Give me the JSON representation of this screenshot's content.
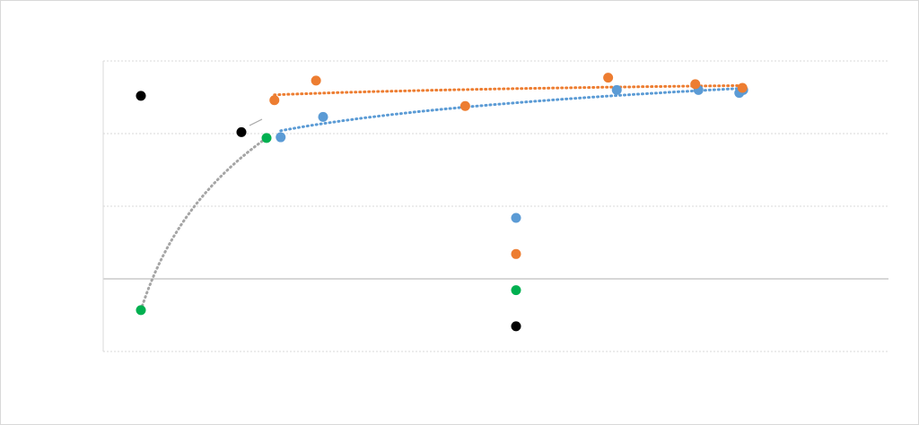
{
  "chart_data": {
    "type": "scatter",
    "xlim": [
      0,
      100
    ],
    "ylim": [
      -1,
      3
    ],
    "yticks": [
      -1,
      0,
      1,
      2,
      3
    ],
    "grid": true,
    "trendline": "log",
    "series": [
      {
        "color": "#5b9bd5",
        "trend_color": "#5b9bd5",
        "x": [
          22.6,
          28,
          65.4,
          75.8,
          81,
          81.5
        ],
        "values": [
          1.95,
          2.23,
          2.6,
          2.6,
          2.56,
          2.6
        ]
      },
      {
        "color": "#ed7d31",
        "trend_color": "#ed7d31",
        "x": [
          21.8,
          27.1,
          46.1,
          64.3,
          75.4,
          81.4
        ],
        "values": [
          2.46,
          2.73,
          2.38,
          2.77,
          2.68,
          2.63
        ]
      },
      {
        "color": "#00b050",
        "trend_color": "#a5a5a5",
        "x": [
          4.8,
          20.8
        ],
        "values": [
          -0.43,
          1.94
        ]
      },
      {
        "color": "#000000",
        "x": [
          4.8,
          17.6
        ],
        "values": [
          2.52,
          2.02
        ]
      }
    ]
  }
}
